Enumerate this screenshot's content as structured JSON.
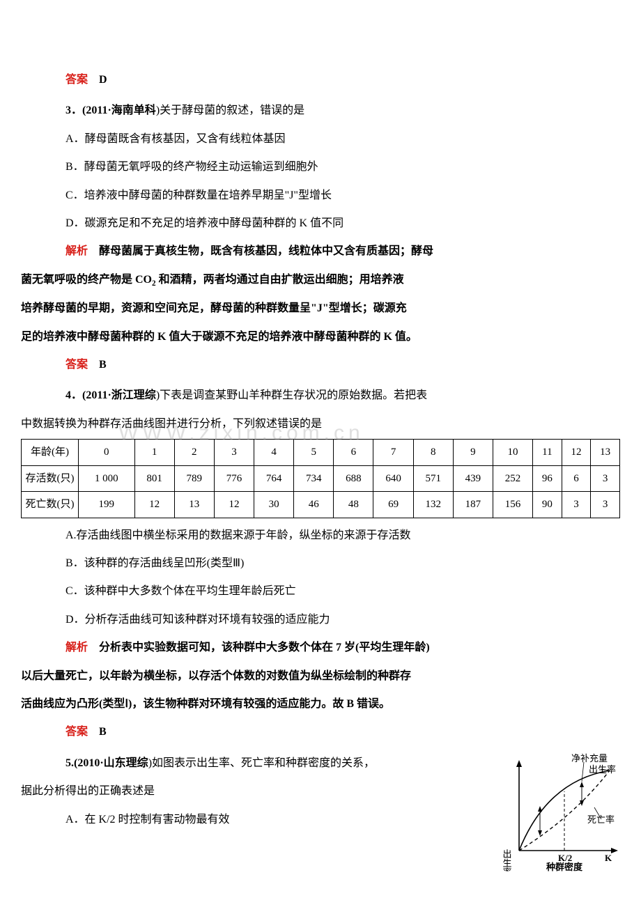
{
  "watermark": "WWW.zixin.com.cn",
  "ans2": {
    "label": "答案",
    "val": "D"
  },
  "q3": {
    "stem_pre": "3．(2011·",
    "stem_src": "海南单科",
    "stem_post": ")关于酵母菌的叙述，错误的是",
    "A": "A．酵母菌既含有核基因，又含有线粒体基因",
    "B": "B．酵母菌无氧呼吸的终产物经主动运输运到细胞外",
    "C": "C．培养液中酵母菌的种群数量在培养早期呈\"J\"型增长",
    "D": "D．碳源充足和不充足的培养液中酵母菌种群的 K 值不同",
    "ex_label": "解析",
    "ex1": "酵母菌属于真核生物，既含有核基因，线粒体中又含有质基因；酵母",
    "ex2_pre": "菌无氧呼吸的终产物是 CO",
    "ex2_sub": "2",
    "ex2_post": " 和酒精，两者均通过自由扩散运出细胞；用培养液",
    "ex3": "培养酵母菌的早期，资源和空间充足，酵母菌的种群数量呈\"J\"型增长；碳源充",
    "ex4": "足的培养液中酵母菌种群的 K 值大于碳源不充足的培养液中酵母菌种群的 K 值。",
    "ans_label": "答案",
    "ans_val": "B"
  },
  "q4": {
    "stem_pre": "4．(2011·",
    "stem_src": "浙江理综",
    "stem_post": ")下表是调查某野山羊种群生存状况的原始数据。若把表",
    "stem_line2": "中数据转换为种群存活曲线图并进行分析，下列叙述错误的是",
    "table": {
      "row_hdr": [
        "年龄(年)",
        "存活数(只)",
        "死亡数(只)"
      ],
      "ages": [
        "0",
        "1",
        "2",
        "3",
        "4",
        "5",
        "6",
        "7",
        "8",
        "9",
        "10",
        "11",
        "12",
        "13"
      ],
      "alive": [
        "1 000",
        "801",
        "789",
        "776",
        "764",
        "734",
        "688",
        "640",
        "571",
        "439",
        "252",
        "96",
        "6",
        "3"
      ],
      "dead": [
        "199",
        "12",
        "13",
        "12",
        "30",
        "46",
        "48",
        "69",
        "132",
        "187",
        "156",
        "90",
        "3",
        "3"
      ]
    },
    "A": "A.存活曲线图中横坐标采用的数据来源于年龄，纵坐标的来源于存活数",
    "B": "B．该种群的存活曲线呈凹形(类型Ⅲ)",
    "C": "C．该种群中大多数个体在平均生理年龄后死亡",
    "D": "D．分析存活曲线可知该种群对环境有较强的适应能力",
    "ex_label": "解析",
    "ex1": "分析表中实验数据可知，该种群中大多数个体在 7 岁(平均生理年龄)",
    "ex2": "以后大量死亡，以年龄为横坐标，以存活个体数的对数值为纵坐标绘制的种群存",
    "ex3": "活曲线应为凸形(类型Ⅰ)，该生物种群对环境有较强的适应能力。故 B 错误。",
    "ans_label": "答案",
    "ans_val": "B"
  },
  "q5": {
    "stem_pre": "5.(2010·",
    "stem_src": "山东理综",
    "stem_post": ")如图表示出生率、死亡率和种群密度的关系，",
    "stem_line2": "据此分析得出的正确表述是",
    "A": "A．在 K/2 时控制有害动物最有效",
    "fig": {
      "ylabel": "出生率或死亡率",
      "xlabel": "种群密度",
      "curve_birth": "出生率",
      "curve_death": "死亡率",
      "net": "净补充量",
      "xticks": [
        "K/2",
        "K"
      ],
      "colors": {
        "axes": "#000000",
        "solid": "#000000",
        "dash": "#000000",
        "text": "#000000"
      },
      "linewidth_solid": 1.6,
      "linewidth_dash": 1.4,
      "dash_pattern": "5,4"
    }
  }
}
